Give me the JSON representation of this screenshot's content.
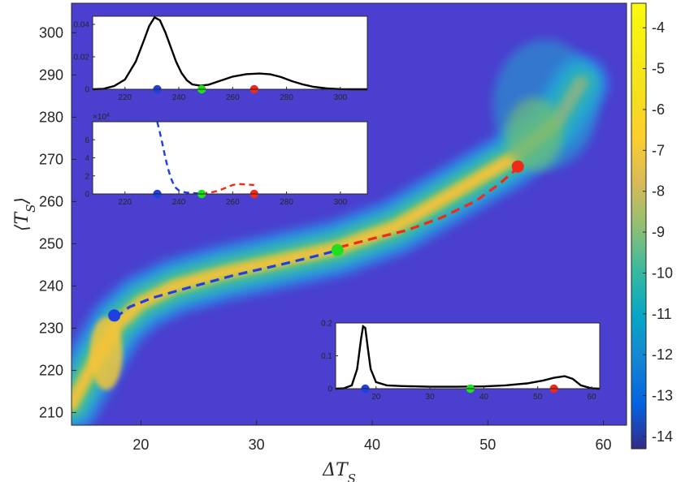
{
  "chart_data": [
    {
      "type": "heatmap",
      "colormap": "parula",
      "background_color": "#4a3fcf",
      "xlabel": "ΔT_S",
      "ylabel": "⟨T_S⟩",
      "xlim": [
        14,
        62
      ],
      "ylim": [
        207,
        307
      ],
      "xticks": [
        20,
        30,
        40,
        50,
        60
      ],
      "yticks": [
        210,
        220,
        230,
        240,
        250,
        260,
        270,
        280,
        290,
        300
      ],
      "density_ridge": {
        "x": [
          14,
          16,
          18,
          20,
          23,
          27,
          32,
          37,
          42,
          47,
          52,
          56,
          58
        ],
        "y": [
          212,
          222,
          231,
          236,
          240,
          243,
          246,
          249,
          254,
          262,
          270,
          279,
          288
        ]
      },
      "colorbar": {
        "range": [
          -14.3,
          -3.4
        ],
        "ticks": [
          -4,
          -5,
          -6,
          -7,
          -8,
          -9,
          -10,
          -11,
          -12,
          -13,
          -14
        ]
      },
      "curves": [
        {
          "color": "#1f3fe0",
          "style": "dashed",
          "x": [
            17.8,
            19,
            21,
            24,
            28,
            32,
            35,
            37.2
          ],
          "y": [
            232.5,
            235,
            237.2,
            239.5,
            242.5,
            245,
            247,
            248.6
          ]
        },
        {
          "color": "#f02a18",
          "style": "dashed",
          "x": [
            37.2,
            40,
            43,
            46,
            49,
            51,
            52.6
          ],
          "y": [
            249.2,
            251.2,
            253.2,
            256.2,
            260.2,
            264.2,
            268
          ]
        }
      ],
      "markers": [
        {
          "color": "#1f3fe0",
          "x": 17.7,
          "y": 233
        },
        {
          "color": "#1fe01f",
          "x": 37.0,
          "y": 248.5
        },
        {
          "color": "#f02a18",
          "x": 52.6,
          "y": 268.3
        }
      ]
    },
    {
      "type": "line",
      "xlim": [
        208,
        310
      ],
      "ylim": [
        0,
        0.045
      ],
      "xticks": [
        220,
        240,
        260,
        280,
        300
      ],
      "yticks": [
        0,
        0.02,
        0.04
      ],
      "ytick_labels": [
        "0",
        "0.02",
        "0.04"
      ],
      "series": [
        {
          "color": "#000000",
          "x": [
            208,
            212,
            216,
            220,
            224,
            227,
            229,
            231,
            233,
            235,
            237,
            239,
            241,
            243,
            245,
            248,
            251,
            255,
            260,
            265,
            270,
            274,
            278,
            282,
            286,
            290,
            295,
            300,
            305,
            310
          ],
          "y": [
            0,
            0.0003,
            0.002,
            0.006,
            0.017,
            0.03,
            0.039,
            0.0443,
            0.0425,
            0.035,
            0.026,
            0.017,
            0.01,
            0.0055,
            0.003,
            0.0022,
            0.0028,
            0.005,
            0.0078,
            0.0093,
            0.0097,
            0.0092,
            0.0075,
            0.005,
            0.003,
            0.0015,
            0.0005,
            0.0001,
            0,
            0
          ]
        }
      ],
      "markers": [
        {
          "color": "#1f3fe0",
          "x": 232,
          "y": 0
        },
        {
          "color": "#1fe01f",
          "x": 248.5,
          "y": 0
        },
        {
          "color": "#f02a18",
          "x": 268,
          "y": 0
        }
      ]
    },
    {
      "type": "line",
      "xlim": [
        208,
        310
      ],
      "ylim": [
        0,
        8
      ],
      "xticks": [
        220,
        240,
        260,
        280,
        300
      ],
      "yticks": [
        0,
        2,
        4,
        6
      ],
      "ytick_labels": [
        "0",
        "2",
        "4",
        "6"
      ],
      "y_multiplier_label": "×10",
      "y_multiplier_exponent": "4",
      "series": [
        {
          "color": "#1f3fe0",
          "style": "dashed",
          "x": [
            232,
            233,
            234,
            235,
            236,
            237,
            238,
            239,
            240,
            242,
            244,
            246,
            248.5
          ],
          "y": [
            8,
            6.8,
            5.4,
            4.0,
            2.8,
            1.8,
            1.1,
            0.65,
            0.4,
            0.2,
            0.12,
            0.08,
            0.06
          ]
        },
        {
          "color": "#f02a18",
          "style": "dashed",
          "x": [
            248.5,
            252,
            255,
            258,
            260,
            262,
            265,
            268
          ],
          "y": [
            0.06,
            0.15,
            0.4,
            0.75,
            1.0,
            1.1,
            1.05,
            1.0
          ]
        }
      ],
      "markers": [
        {
          "color": "#1f3fe0",
          "x": 232,
          "y": 0
        },
        {
          "color": "#1fe01f",
          "x": 248.5,
          "y": 0
        },
        {
          "color": "#f02a18",
          "x": 268,
          "y": 0
        }
      ]
    },
    {
      "type": "line",
      "xlim": [
        12.5,
        61.5
      ],
      "ylim": [
        0,
        0.2
      ],
      "xticks": [
        20,
        30,
        40,
        50,
        60
      ],
      "yticks": [
        0,
        0.1,
        0.2
      ],
      "ytick_labels": [
        "0",
        "0.1",
        "0.2"
      ],
      "series": [
        {
          "color": "#000000",
          "x": [
            12.5,
            14,
            15.5,
            16.5,
            17.2,
            17.6,
            18.0,
            18.5,
            19,
            20,
            22,
            25,
            30,
            35,
            40,
            44,
            48,
            51,
            53,
            55,
            56.5,
            58,
            60,
            61.5
          ],
          "y": [
            0,
            0.001,
            0.01,
            0.06,
            0.15,
            0.19,
            0.185,
            0.12,
            0.06,
            0.02,
            0.01,
            0.008,
            0.006,
            0.006,
            0.007,
            0.01,
            0.016,
            0.025,
            0.033,
            0.038,
            0.03,
            0.01,
            0.001,
            0
          ]
        }
      ],
      "markers": [
        {
          "color": "#1f3fe0",
          "x": 18,
          "y": 0
        },
        {
          "color": "#1fe01f",
          "x": 37.5,
          "y": 0
        },
        {
          "color": "#f02a18",
          "x": 53,
          "y": 0
        }
      ]
    }
  ]
}
